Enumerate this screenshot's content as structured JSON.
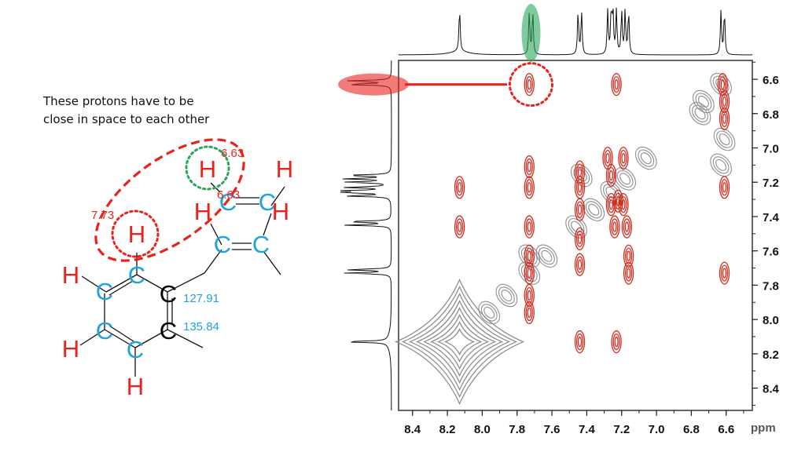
{
  "caption": {
    "line1": "These protons have to be",
    "line2": "close in space to each other"
  },
  "molecule": {
    "shift_labels": [
      "6.63",
      "6.63",
      "7.73"
    ],
    "carbon_labels": [
      "127.91",
      "135.84"
    ],
    "atom_symbols": {
      "hydrogen": "H",
      "carbon": "C"
    },
    "colors": {
      "hydrogen": "#e8231e",
      "carbon_highlight": "#1fa3dc",
      "carbon_plain": "#000000",
      "shift_text": "#e8231e",
      "carbon_shift_text": "#1fa3dc",
      "close_proton_ring": "#2aa55a",
      "spatial_ring": "#e8231e"
    }
  },
  "chart_data": {
    "type": "heatmap",
    "subtype": "2D NMR (NOESY) contour plot with 1D projections",
    "title": "",
    "xlabel": "ppm",
    "ylabel": "",
    "xlim": [
      8.48,
      6.45
    ],
    "ylim": [
      6.49,
      8.53
    ],
    "x_ticks": [
      "8.4",
      "8.2",
      "8.0",
      "7.8",
      "7.6",
      "7.4",
      "7.2",
      "7.0",
      "6.8",
      "6.6"
    ],
    "y_ticks": [
      "6.6",
      "6.8",
      "7.0",
      "7.2",
      "7.4",
      "7.6",
      "7.8",
      "8.0",
      "8.2",
      "8.4"
    ],
    "x_unit_label": "ppm",
    "series": [
      {
        "name": "",
        "color": "#d42a1c",
        "peaks": [
          {
            "x": 7.73,
            "y": 6.63
          },
          {
            "x": 7.23,
            "y": 6.63
          },
          {
            "x": 6.62,
            "y": 6.63
          },
          {
            "x": 6.61,
            "y": 6.73
          },
          {
            "x": 6.61,
            "y": 6.83
          },
          {
            "x": 6.61,
            "y": 7.23
          },
          {
            "x": 6.61,
            "y": 7.73
          },
          {
            "x": 8.13,
            "y": 7.23
          },
          {
            "x": 8.13,
            "y": 7.46
          },
          {
            "x": 7.73,
            "y": 7.11
          },
          {
            "x": 7.73,
            "y": 7.23
          },
          {
            "x": 7.73,
            "y": 7.46
          },
          {
            "x": 7.73,
            "y": 7.63
          },
          {
            "x": 7.73,
            "y": 7.73
          },
          {
            "x": 7.73,
            "y": 7.86
          },
          {
            "x": 7.73,
            "y": 7.96
          },
          {
            "x": 7.44,
            "y": 7.14
          },
          {
            "x": 7.44,
            "y": 7.23
          },
          {
            "x": 7.44,
            "y": 7.36
          },
          {
            "x": 7.44,
            "y": 7.53
          },
          {
            "x": 7.44,
            "y": 7.68
          },
          {
            "x": 7.44,
            "y": 8.13
          },
          {
            "x": 7.28,
            "y": 7.06
          },
          {
            "x": 7.26,
            "y": 7.16
          },
          {
            "x": 7.26,
            "y": 7.33
          },
          {
            "x": 7.24,
            "y": 7.46
          },
          {
            "x": 7.22,
            "y": 7.31
          },
          {
            "x": 7.23,
            "y": 8.13
          },
          {
            "x": 7.19,
            "y": 7.06
          },
          {
            "x": 7.19,
            "y": 7.33
          },
          {
            "x": 7.17,
            "y": 7.46
          },
          {
            "x": 7.16,
            "y": 7.63
          },
          {
            "x": 7.16,
            "y": 7.73
          }
        ]
      },
      {
        "name": "",
        "color": "#8e8e8e",
        "diagonal_peaks": [
          {
            "x": 8.13,
            "y": 8.13
          },
          {
            "x": 7.96,
            "y": 7.96
          },
          {
            "x": 7.86,
            "y": 7.86
          },
          {
            "x": 7.73,
            "y": 7.73
          },
          {
            "x": 7.63,
            "y": 7.63
          },
          {
            "x": 7.46,
            "y": 7.46
          },
          {
            "x": 7.36,
            "y": 7.36
          },
          {
            "x": 7.26,
            "y": 7.26
          },
          {
            "x": 7.18,
            "y": 7.18
          },
          {
            "x": 7.06,
            "y": 7.06
          },
          {
            "x": 6.63,
            "y": 6.63
          },
          {
            "x": 6.73,
            "y": 6.73
          }
        ],
        "other_peaks": [
          {
            "x": 6.61,
            "y": 6.95
          },
          {
            "x": 6.63,
            "y": 7.1
          },
          {
            "x": 6.75,
            "y": 6.8
          },
          {
            "x": 7.73,
            "y": 7.63
          },
          {
            "x": 7.43,
            "y": 7.16
          }
        ]
      }
    ],
    "projection_peaks_f2": [
      8.13,
      7.73,
      7.71,
      7.45,
      7.43,
      7.28,
      7.26,
      7.25,
      7.23,
      7.2,
      7.18,
      7.16,
      6.63,
      6.61
    ],
    "projection_peaks_f1": [
      6.63,
      6.61,
      7.16,
      7.18,
      7.2,
      7.23,
      7.25,
      7.26,
      7.28,
      7.43,
      7.45,
      7.71,
      7.73,
      8.13
    ],
    "annotations": {
      "green_highlight_x": 7.72,
      "red_highlight_y": 6.63,
      "cross_peak_circle": {
        "x": 7.72,
        "y": 6.63
      }
    }
  }
}
